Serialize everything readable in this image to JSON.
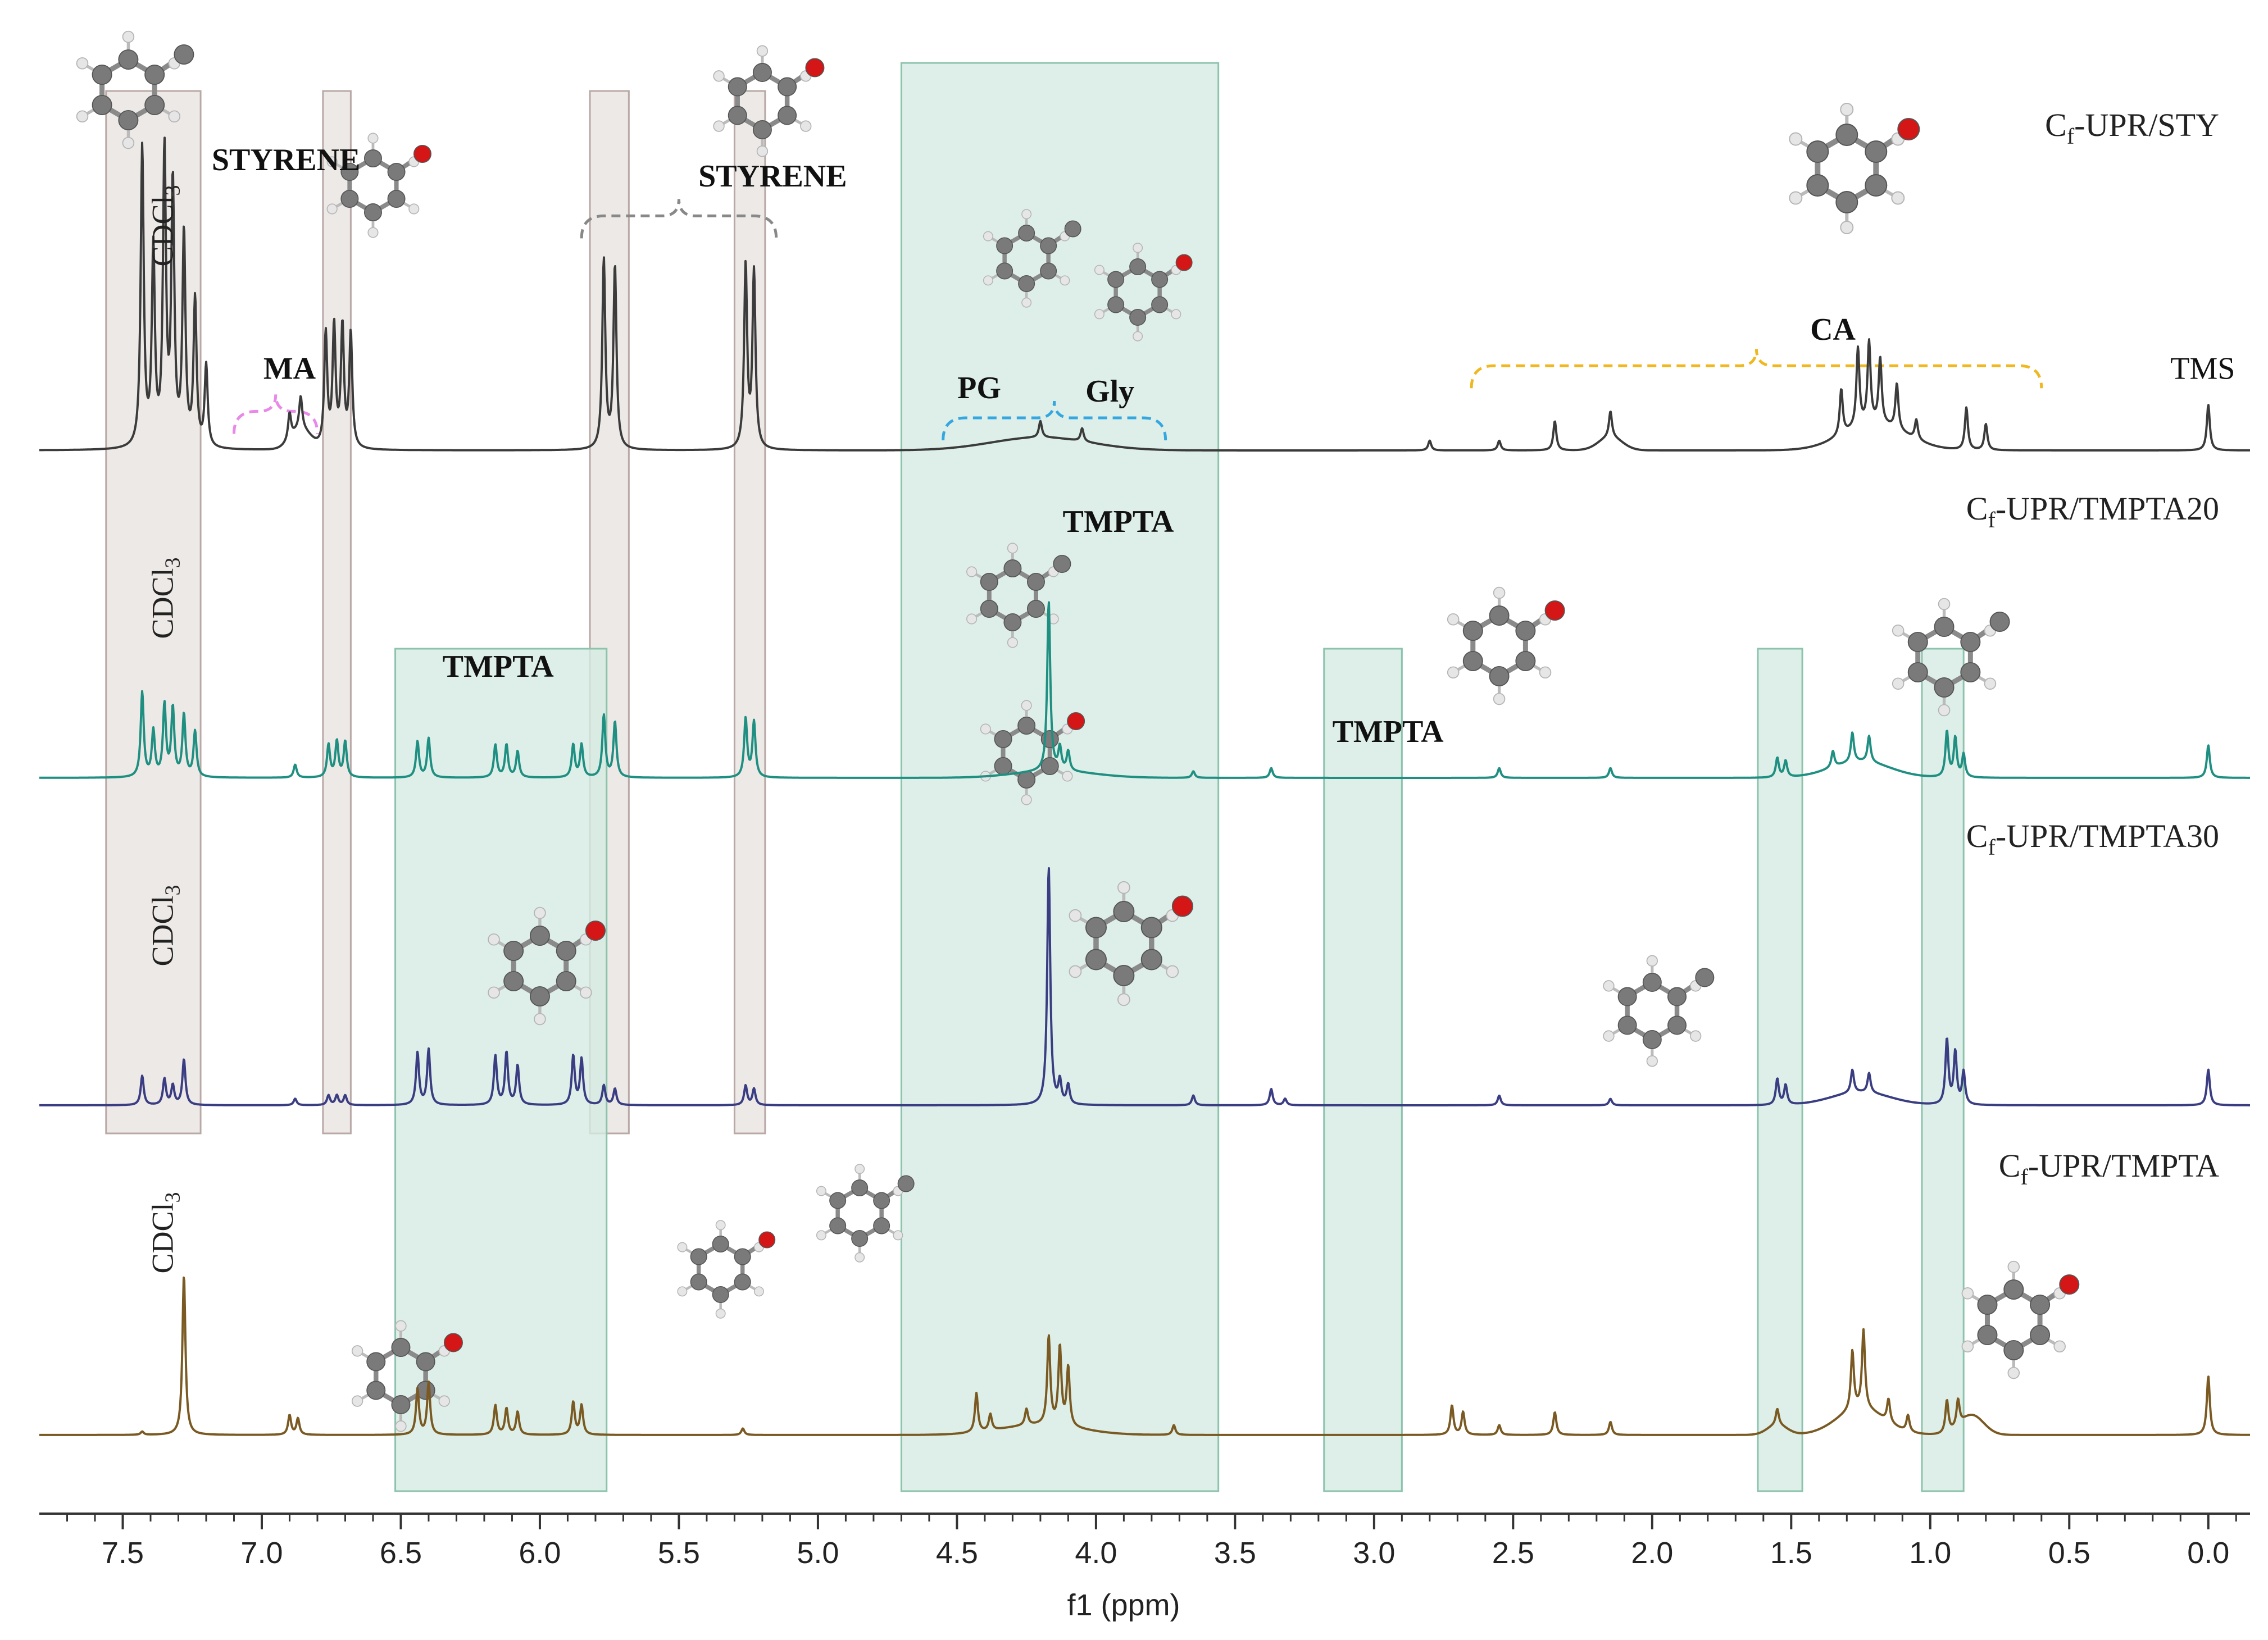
{
  "chart_data": {
    "type": "line",
    "title": "",
    "xlabel": "f1 (ppm)",
    "ylabel": "",
    "x_range": [
      7.8,
      -0.15
    ],
    "xlim_reversed": true,
    "x_ticks": [
      "7.5",
      "7.0",
      "6.5",
      "6.0",
      "5.5",
      "5.0",
      "4.5",
      "4.0",
      "3.5",
      "3.0",
      "2.5",
      "2.0",
      "1.5",
      "1.0",
      "0.5",
      "0.0"
    ],
    "x_tick_values": [
      7.5,
      7.0,
      6.5,
      6.0,
      5.5,
      5.0,
      4.5,
      4.0,
      3.5,
      3.0,
      2.5,
      2.0,
      1.5,
      1.0,
      0.5,
      0.0
    ],
    "series": [
      {
        "name": "Cf-UPR/STY",
        "label_main": "C",
        "label_sub": "f",
        "label_rest": "-UPR/STY",
        "color": "#3b3b3b",
        "level": 0,
        "solvent_label": "CDCl3",
        "peaks": [
          {
            "ppm": 7.43,
            "h": 0.92
          },
          {
            "ppm": 7.39,
            "h": 0.6
          },
          {
            "ppm": 7.35,
            "h": 0.9
          },
          {
            "ppm": 7.32,
            "h": 0.8
          },
          {
            "ppm": 7.28,
            "h": 0.65
          },
          {
            "ppm": 7.24,
            "h": 0.45
          },
          {
            "ppm": 7.2,
            "h": 0.25
          },
          {
            "ppm": 6.9,
            "h": 0.08
          },
          {
            "ppm": 6.86,
            "h": 0.1
          },
          {
            "ppm": 6.77,
            "h": 0.35
          },
          {
            "ppm": 6.74,
            "h": 0.37
          },
          {
            "ppm": 6.71,
            "h": 0.37
          },
          {
            "ppm": 6.68,
            "h": 0.35
          },
          {
            "ppm": 5.77,
            "h": 0.58
          },
          {
            "ppm": 5.73,
            "h": 0.56
          },
          {
            "ppm": 5.26,
            "h": 0.56
          },
          {
            "ppm": 5.23,
            "h": 0.54
          },
          {
            "ppm": 4.2,
            "h": 0.05
          },
          {
            "ppm": 4.05,
            "h": 0.04
          },
          {
            "ppm": 2.8,
            "h": 0.03
          },
          {
            "ppm": 2.55,
            "h": 0.03
          },
          {
            "ppm": 2.35,
            "h": 0.09
          },
          {
            "ppm": 2.15,
            "h": 0.08
          },
          {
            "ppm": 1.32,
            "h": 0.14
          },
          {
            "ppm": 1.26,
            "h": 0.24
          },
          {
            "ppm": 1.22,
            "h": 0.25
          },
          {
            "ppm": 1.18,
            "h": 0.2
          },
          {
            "ppm": 1.12,
            "h": 0.14
          },
          {
            "ppm": 1.05,
            "h": 0.06
          },
          {
            "ppm": 0.87,
            "h": 0.13
          },
          {
            "ppm": 0.8,
            "h": 0.08
          },
          {
            "ppm": 0.0,
            "h": 0.14
          }
        ],
        "broads": [
          {
            "ppm": 6.86,
            "h": 0.06,
            "w": 0.05
          },
          {
            "ppm": 4.2,
            "h": 0.04,
            "w": 0.25
          },
          {
            "ppm": 2.15,
            "h": 0.04,
            "w": 0.06
          },
          {
            "ppm": 1.2,
            "h": 0.08,
            "w": 0.16
          }
        ]
      },
      {
        "name": "Cf-UPR/TMPTA20",
        "label_main": "C",
        "label_sub": "f",
        "label_rest": "-UPR/TMPTA20",
        "color": "#1f8f82",
        "level": 1,
        "solvent_label": "CDCl3",
        "peaks": [
          {
            "ppm": 7.43,
            "h": 0.26
          },
          {
            "ppm": 7.39,
            "h": 0.14
          },
          {
            "ppm": 7.35,
            "h": 0.22
          },
          {
            "ppm": 7.32,
            "h": 0.21
          },
          {
            "ppm": 7.28,
            "h": 0.19
          },
          {
            "ppm": 7.24,
            "h": 0.14
          },
          {
            "ppm": 6.88,
            "h": 0.04
          },
          {
            "ppm": 6.76,
            "h": 0.1
          },
          {
            "ppm": 6.73,
            "h": 0.11
          },
          {
            "ppm": 6.7,
            "h": 0.11
          },
          {
            "ppm": 6.44,
            "h": 0.11
          },
          {
            "ppm": 6.4,
            "h": 0.12
          },
          {
            "ppm": 6.16,
            "h": 0.1
          },
          {
            "ppm": 6.12,
            "h": 0.1
          },
          {
            "ppm": 6.08,
            "h": 0.08
          },
          {
            "ppm": 5.88,
            "h": 0.1
          },
          {
            "ppm": 5.85,
            "h": 0.1
          },
          {
            "ppm": 5.77,
            "h": 0.19
          },
          {
            "ppm": 5.73,
            "h": 0.17
          },
          {
            "ppm": 5.26,
            "h": 0.18
          },
          {
            "ppm": 5.23,
            "h": 0.17
          },
          {
            "ppm": 4.17,
            "h": 0.52
          },
          {
            "ppm": 4.13,
            "h": 0.07
          },
          {
            "ppm": 4.1,
            "h": 0.06
          },
          {
            "ppm": 3.65,
            "h": 0.02
          },
          {
            "ppm": 3.37,
            "h": 0.03
          },
          {
            "ppm": 2.55,
            "h": 0.03
          },
          {
            "ppm": 2.15,
            "h": 0.03
          },
          {
            "ppm": 1.55,
            "h": 0.06
          },
          {
            "ppm": 1.52,
            "h": 0.05
          },
          {
            "ppm": 1.35,
            "h": 0.05
          },
          {
            "ppm": 1.28,
            "h": 0.09
          },
          {
            "ppm": 1.22,
            "h": 0.08
          },
          {
            "ppm": 0.94,
            "h": 0.14
          },
          {
            "ppm": 0.91,
            "h": 0.12
          },
          {
            "ppm": 0.88,
            "h": 0.07
          },
          {
            "ppm": 0.0,
            "h": 0.1
          }
        ],
        "broads": [
          {
            "ppm": 1.25,
            "h": 0.05,
            "w": 0.15
          },
          {
            "ppm": 4.15,
            "h": 0.02,
            "w": 0.2
          }
        ]
      },
      {
        "name": "Cf-UPR/TMPTA30",
        "label_main": "C",
        "label_sub": "f",
        "label_rest": "-UPR/TMPTA30",
        "color": "#3a3d82",
        "level": 2,
        "solvent_label": "CDCl3",
        "peaks": [
          {
            "ppm": 7.43,
            "h": 0.09
          },
          {
            "ppm": 7.35,
            "h": 0.08
          },
          {
            "ppm": 7.32,
            "h": 0.06
          },
          {
            "ppm": 7.28,
            "h": 0.14
          },
          {
            "ppm": 6.88,
            "h": 0.02
          },
          {
            "ppm": 6.76,
            "h": 0.03
          },
          {
            "ppm": 6.73,
            "h": 0.03
          },
          {
            "ppm": 6.7,
            "h": 0.03
          },
          {
            "ppm": 6.44,
            "h": 0.16
          },
          {
            "ppm": 6.4,
            "h": 0.17
          },
          {
            "ppm": 6.16,
            "h": 0.15
          },
          {
            "ppm": 6.12,
            "h": 0.16
          },
          {
            "ppm": 6.08,
            "h": 0.12
          },
          {
            "ppm": 5.88,
            "h": 0.15
          },
          {
            "ppm": 5.85,
            "h": 0.14
          },
          {
            "ppm": 5.77,
            "h": 0.06
          },
          {
            "ppm": 5.73,
            "h": 0.05
          },
          {
            "ppm": 5.26,
            "h": 0.06
          },
          {
            "ppm": 5.23,
            "h": 0.05
          },
          {
            "ppm": 4.17,
            "h": 0.73
          },
          {
            "ppm": 4.13,
            "h": 0.07
          },
          {
            "ppm": 4.1,
            "h": 0.06
          },
          {
            "ppm": 3.65,
            "h": 0.03
          },
          {
            "ppm": 3.37,
            "h": 0.05
          },
          {
            "ppm": 3.32,
            "h": 0.02
          },
          {
            "ppm": 2.55,
            "h": 0.03
          },
          {
            "ppm": 2.15,
            "h": 0.02
          },
          {
            "ppm": 1.55,
            "h": 0.08
          },
          {
            "ppm": 1.52,
            "h": 0.06
          },
          {
            "ppm": 1.28,
            "h": 0.07
          },
          {
            "ppm": 1.22,
            "h": 0.06
          },
          {
            "ppm": 0.94,
            "h": 0.2
          },
          {
            "ppm": 0.91,
            "h": 0.16
          },
          {
            "ppm": 0.88,
            "h": 0.1
          },
          {
            "ppm": 0.0,
            "h": 0.11
          }
        ],
        "broads": [
          {
            "ppm": 1.25,
            "h": 0.04,
            "w": 0.15
          }
        ]
      },
      {
        "name": "Cf-UPR/TMPTA",
        "label_main": "C",
        "label_sub": "f",
        "label_rest": "-UPR/TMPTA",
        "color": "#7a5a22",
        "level": 3,
        "solvent_label": "CDCl3",
        "peaks": [
          {
            "ppm": 7.43,
            "h": 0.01
          },
          {
            "ppm": 7.28,
            "h": 0.49
          },
          {
            "ppm": 6.9,
            "h": 0.06
          },
          {
            "ppm": 6.87,
            "h": 0.05
          },
          {
            "ppm": 6.44,
            "h": 0.14
          },
          {
            "ppm": 6.4,
            "h": 0.16
          },
          {
            "ppm": 6.16,
            "h": 0.09
          },
          {
            "ppm": 6.12,
            "h": 0.08
          },
          {
            "ppm": 6.08,
            "h": 0.07
          },
          {
            "ppm": 5.88,
            "h": 0.1
          },
          {
            "ppm": 5.85,
            "h": 0.09
          },
          {
            "ppm": 5.27,
            "h": 0.02
          },
          {
            "ppm": 4.43,
            "h": 0.12
          },
          {
            "ppm": 4.38,
            "h": 0.05
          },
          {
            "ppm": 4.25,
            "h": 0.05
          },
          {
            "ppm": 4.17,
            "h": 0.27
          },
          {
            "ppm": 4.13,
            "h": 0.24
          },
          {
            "ppm": 4.1,
            "h": 0.18
          },
          {
            "ppm": 3.72,
            "h": 0.03
          },
          {
            "ppm": 2.72,
            "h": 0.09
          },
          {
            "ppm": 2.68,
            "h": 0.07
          },
          {
            "ppm": 2.55,
            "h": 0.03
          },
          {
            "ppm": 2.35,
            "h": 0.07
          },
          {
            "ppm": 2.15,
            "h": 0.04
          },
          {
            "ppm": 1.55,
            "h": 0.05
          },
          {
            "ppm": 1.28,
            "h": 0.18
          },
          {
            "ppm": 1.24,
            "h": 0.24
          },
          {
            "ppm": 1.15,
            "h": 0.07
          },
          {
            "ppm": 1.08,
            "h": 0.05
          },
          {
            "ppm": 0.94,
            "h": 0.1
          },
          {
            "ppm": 0.9,
            "h": 0.08
          },
          {
            "ppm": 0.0,
            "h": 0.18
          }
        ],
        "broads": [
          {
            "ppm": 1.25,
            "h": 0.08,
            "w": 0.12
          },
          {
            "ppm": 0.85,
            "h": 0.06,
            "w": 0.06
          },
          {
            "ppm": 1.55,
            "h": 0.03,
            "w": 0.05
          },
          {
            "ppm": 4.2,
            "h": 0.03,
            "w": 0.2
          }
        ]
      }
    ],
    "highlight_regions": [
      {
        "kind": "gray",
        "from": 7.56,
        "to": 7.22,
        "top_series": 0,
        "bottom_series": 2
      },
      {
        "kind": "gray",
        "from": 6.78,
        "to": 6.68,
        "top_series": 0,
        "bottom_series": 2
      },
      {
        "kind": "gray",
        "from": 5.82,
        "to": 5.68,
        "top_series": 0,
        "bottom_series": 2
      },
      {
        "kind": "gray",
        "from": 5.3,
        "to": 5.19,
        "top_series": 0,
        "bottom_series": 2
      },
      {
        "kind": "green",
        "from": 6.52,
        "to": 5.76,
        "top_series": 1,
        "bottom_series": 3
      },
      {
        "kind": "green",
        "from": 4.7,
        "to": 3.56,
        "top_series": 0,
        "bottom_series": 3
      },
      {
        "kind": "green",
        "from": 3.18,
        "to": 2.9,
        "top_series": 1,
        "bottom_series": 3
      },
      {
        "kind": "green",
        "from": 1.62,
        "to": 1.46,
        "top_series": 1,
        "bottom_series": 3
      },
      {
        "kind": "green",
        "from": 1.03,
        "to": 0.88,
        "top_series": 1,
        "bottom_series": 3
      }
    ],
    "annotations": [
      {
        "text": "STYRENE",
        "ppm": 7.18,
        "series": 0,
        "dy": -0.86,
        "bold": true,
        "anchor": "start"
      },
      {
        "text": "STYRENE",
        "ppm": 5.43,
        "series": 0,
        "dy": -0.81,
        "bold": true,
        "anchor": "start"
      },
      {
        "text": "MA",
        "ppm": 6.9,
        "series": 0,
        "dy": -0.22,
        "bold": true,
        "anchor": "middle"
      },
      {
        "text": "PG",
        "ppm": 4.42,
        "series": 0,
        "dy": -0.16,
        "bold": true,
        "anchor": "middle"
      },
      {
        "text": "Gly",
        "ppm": 3.95,
        "series": 0,
        "dy": -0.15,
        "bold": true,
        "anchor": "middle"
      },
      {
        "text": "CA",
        "ppm": 1.35,
        "series": 0,
        "dy": -0.34,
        "bold": true,
        "anchor": "middle"
      },
      {
        "text": "TMS",
        "ppm": 0.02,
        "series": 0,
        "dy": -0.22,
        "bold": false,
        "anchor": "middle"
      },
      {
        "text": "TMPTA",
        "ppm": 6.15,
        "series": 1,
        "dy": -0.31,
        "bold": true,
        "anchor": "middle"
      },
      {
        "text": "TMPTA",
        "ppm": 3.92,
        "series": 0,
        "dy": 0.25,
        "bold": true,
        "anchor": "middle"
      },
      {
        "text": "TMPTA",
        "ppm": 2.95,
        "series": 1,
        "dy": -0.11,
        "bold": true,
        "anchor": "middle"
      }
    ],
    "brackets": [
      {
        "from": 7.1,
        "to": 6.8,
        "series": 0,
        "dy": -0.12,
        "color": "#e888e8"
      },
      {
        "from": 5.85,
        "to": 5.15,
        "series": 0,
        "dy": -0.72,
        "color": "#888888"
      },
      {
        "from": 4.55,
        "to": 3.75,
        "series": 0,
        "dy": -0.1,
        "color": "#35a7e0"
      },
      {
        "from": 2.65,
        "to": 0.6,
        "series": 0,
        "dy": -0.26,
        "color": "#f0b820"
      }
    ]
  }
}
